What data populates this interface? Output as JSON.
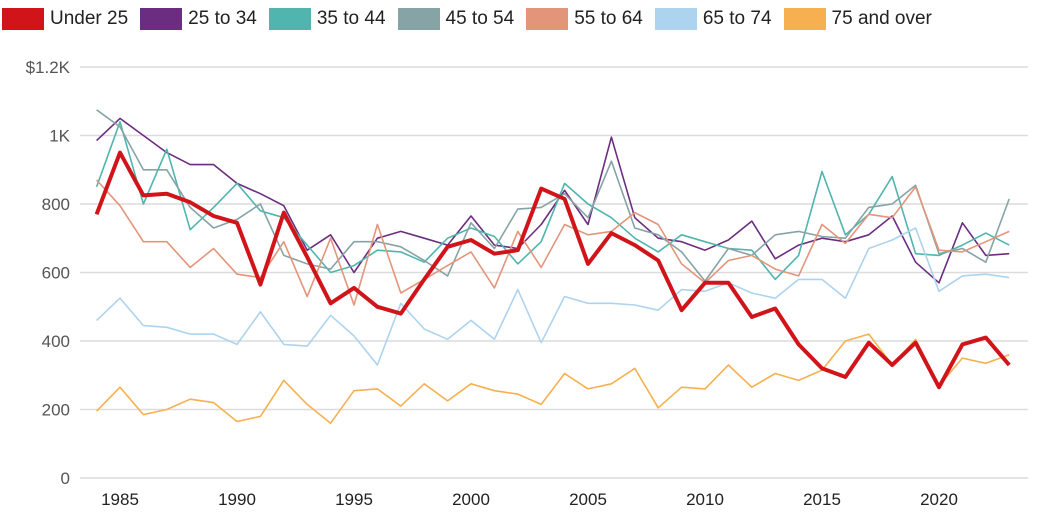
{
  "chart_data": {
    "type": "line",
    "title": "",
    "xlabel": "",
    "ylabel": "",
    "legend_position": "top",
    "grid": true,
    "x": [
      1984,
      1985,
      1986,
      1987,
      1988,
      1989,
      1990,
      1991,
      1992,
      1993,
      1994,
      1995,
      1996,
      1997,
      1998,
      1999,
      2000,
      2001,
      2002,
      2003,
      2004,
      2005,
      2006,
      2007,
      2008,
      2009,
      2010,
      2011,
      2012,
      2013,
      2014,
      2015,
      2016,
      2017,
      2018,
      2019,
      2020,
      2021,
      2022,
      2023
    ],
    "xlim": [
      1984,
      2023
    ],
    "ylim": [
      0,
      1200
    ],
    "x_ticks": [
      1985,
      1990,
      1995,
      2000,
      2005,
      2010,
      2015,
      2020
    ],
    "x_tick_labels": [
      "1985",
      "1990",
      "1995",
      "2000",
      "2005",
      "2010",
      "2015",
      "2020"
    ],
    "y_ticks": [
      0,
      200,
      400,
      600,
      800,
      1000,
      1200
    ],
    "y_tick_labels": [
      "0",
      "200",
      "400",
      "600",
      "800",
      "1K",
      "$1.2K"
    ],
    "series": [
      {
        "name": "Under 25",
        "color": "#d0141a",
        "width": 4,
        "values": [
          770,
          950,
          825,
          830,
          805,
          765,
          745,
          565,
          775,
          645,
          510,
          555,
          500,
          480,
          580,
          675,
          695,
          655,
          665,
          845,
          815,
          625,
          715,
          680,
          635,
          490,
          570,
          570,
          470,
          495,
          390,
          320,
          295,
          395,
          330,
          395,
          265,
          390,
          410,
          330
        ]
      },
      {
        "name": "25 to 34",
        "color": "#6b2d7f",
        "width": 1.6,
        "values": [
          985,
          1050,
          1000,
          950,
          915,
          915,
          860,
          830,
          795,
          665,
          710,
          600,
          700,
          720,
          700,
          680,
          765,
          680,
          670,
          740,
          840,
          740,
          995,
          760,
          700,
          690,
          665,
          695,
          750,
          640,
          680,
          700,
          690,
          710,
          765,
          630,
          570,
          745,
          650,
          655
        ]
      },
      {
        "name": "35 to 44",
        "color": "#4fb5ae",
        "width": 1.6,
        "values": [
          850,
          1040,
          800,
          960,
          725,
          790,
          860,
          780,
          760,
          680,
          600,
          620,
          665,
          660,
          630,
          700,
          730,
          705,
          625,
          690,
          860,
          800,
          760,
          700,
          660,
          710,
          690,
          670,
          665,
          580,
          650,
          895,
          710,
          770,
          880,
          655,
          650,
          680,
          715,
          680
        ]
      },
      {
        "name": "45 to 54",
        "color": "#86a3a6",
        "width": 1.6,
        "values": [
          1075,
          1025,
          900,
          900,
          790,
          730,
          755,
          800,
          650,
          625,
          610,
          690,
          690,
          675,
          635,
          590,
          745,
          670,
          785,
          790,
          830,
          760,
          925,
          730,
          710,
          660,
          575,
          670,
          650,
          710,
          720,
          705,
          700,
          790,
          800,
          855,
          655,
          670,
          630,
          815
        ]
      },
      {
        "name": "55 to 64",
        "color": "#e3957a",
        "width": 1.6,
        "values": [
          870,
          795,
          690,
          690,
          615,
          670,
          595,
          585,
          690,
          530,
          700,
          505,
          740,
          540,
          580,
          620,
          660,
          555,
          720,
          615,
          740,
          710,
          720,
          775,
          740,
          625,
          570,
          635,
          650,
          610,
          590,
          740,
          685,
          770,
          760,
          850,
          665,
          660,
          690,
          720
        ]
      },
      {
        "name": "65 to 74",
        "color": "#aed3ee",
        "width": 1.6,
        "values": [
          460,
          525,
          445,
          440,
          420,
          420,
          390,
          485,
          390,
          385,
          475,
          415,
          330,
          510,
          435,
          405,
          460,
          405,
          550,
          395,
          530,
          510,
          510,
          505,
          490,
          550,
          545,
          570,
          540,
          525,
          580,
          580,
          525,
          670,
          695,
          730,
          545,
          590,
          595,
          585
        ]
      },
      {
        "name": "75 and over",
        "color": "#f6b04f",
        "width": 1.6,
        "values": [
          195,
          265,
          185,
          200,
          230,
          220,
          165,
          180,
          285,
          215,
          160,
          255,
          260,
          210,
          275,
          225,
          275,
          255,
          245,
          215,
          305,
          260,
          275,
          320,
          205,
          265,
          260,
          330,
          265,
          305,
          285,
          315,
          400,
          420,
          330,
          405,
          270,
          350,
          335,
          360
        ]
      }
    ]
  }
}
